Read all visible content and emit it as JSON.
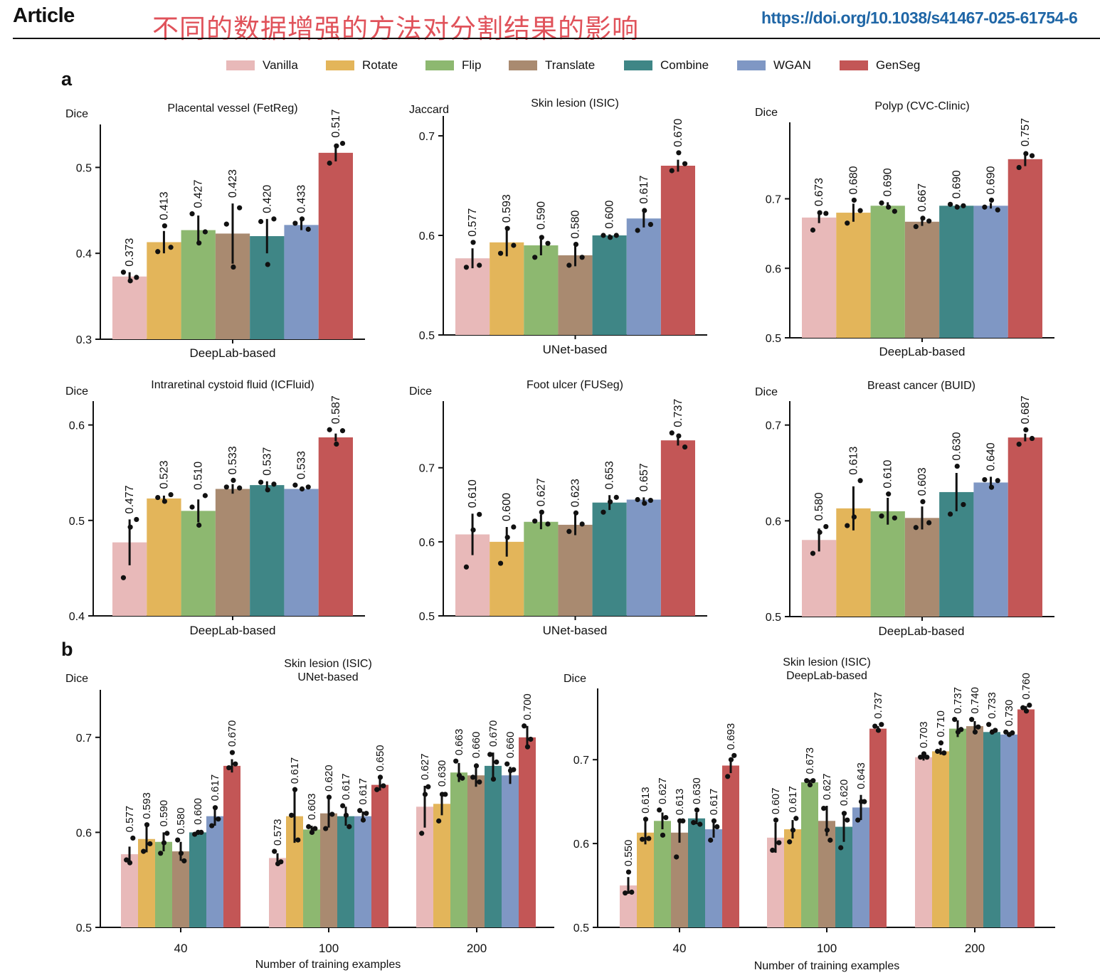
{
  "header": {
    "journal_label": "Article",
    "title_cn": "不同的数据增强的方法对分割结果的影响",
    "doi": "https://doi.org/10.1038/s41467-025-61754-6"
  },
  "legend": {
    "items": [
      {
        "label": "Vanilla",
        "color": "#e8b9b9"
      },
      {
        "label": "Rotate",
        "color": "#e3b55a"
      },
      {
        "label": "Flip",
        "color": "#8db870"
      },
      {
        "label": "Translate",
        "color": "#a98a70"
      },
      {
        "label": "Combine",
        "color": "#3f8686"
      },
      {
        "label": "WGAN",
        "color": "#7f97c4"
      },
      {
        "label": "GenSeg",
        "color": "#c35656"
      }
    ]
  },
  "panels": {
    "a": "a",
    "b": "b"
  },
  "chart_data": [
    {
      "type": "bar",
      "title": "Placental vessel (FetReg)",
      "ylabel": "Dice",
      "xlabel": "DeepLab-based",
      "ylim": [
        0.3,
        0.55
      ],
      "yticks": [
        0.3,
        0.4,
        0.5
      ],
      "tick_labels": [
        "0.3",
        "0.4",
        "0.5"
      ],
      "categories": [
        "Vanilla",
        "Rotate",
        "Flip",
        "Translate",
        "Combine",
        "WGAN",
        "GenSeg"
      ],
      "values": [
        0.373,
        0.413,
        0.427,
        0.423,
        0.42,
        0.433,
        0.517
      ],
      "value_labels": [
        "0.373",
        "0.413",
        "0.427",
        "0.423",
        "0.420",
        "0.433",
        "0.517"
      ],
      "err": [
        0.005,
        0.013,
        0.017,
        0.035,
        0.02,
        0.006,
        0.01
      ],
      "points": [
        [
          0.378,
          0.368,
          0.372
        ],
        [
          0.402,
          0.432,
          0.407
        ],
        [
          0.446,
          0.412,
          0.425
        ],
        [
          0.434,
          0.384,
          0.453
        ],
        [
          0.437,
          0.387,
          0.44
        ],
        [
          0.435,
          0.44,
          0.428
        ],
        [
          0.505,
          0.525,
          0.528
        ]
      ]
    },
    {
      "type": "bar",
      "title": "Skin lesion (ISIC)",
      "ylabel": "Jaccard",
      "xlabel": "UNet-based",
      "ylim": [
        0.5,
        0.72
      ],
      "yticks": [
        0.5,
        0.6,
        0.7
      ],
      "tick_labels": [
        "0.5",
        "0.6",
        "0.7"
      ],
      "categories": [
        "Vanilla",
        "Rotate",
        "Flip",
        "Translate",
        "Combine",
        "WGAN",
        "GenSeg"
      ],
      "values": [
        0.577,
        0.593,
        0.59,
        0.58,
        0.6,
        0.617,
        0.67
      ],
      "value_labels": [
        "0.577",
        "0.593",
        "0.590",
        "0.580",
        "0.600",
        "0.617",
        "0.670"
      ],
      "err": [
        0.01,
        0.014,
        0.01,
        0.011,
        0.001,
        0.009,
        0.006
      ],
      "points": [
        [
          0.568,
          0.593,
          0.57
        ],
        [
          0.582,
          0.607,
          0.59
        ],
        [
          0.578,
          0.598,
          0.592
        ],
        [
          0.57,
          0.591,
          0.578
        ],
        [
          0.6,
          0.598,
          0.6
        ],
        [
          0.605,
          0.625,
          0.611
        ],
        [
          0.665,
          0.683,
          0.672
        ]
      ]
    },
    {
      "type": "bar",
      "title": "Polyp (CVC-Clinic)",
      "ylabel": "Dice",
      "xlabel": "DeepLab-based",
      "ylim": [
        0.5,
        0.81
      ],
      "yticks": [
        0.5,
        0.6,
        0.7
      ],
      "tick_labels": [
        "0.5",
        "0.6",
        "0.7"
      ],
      "categories": [
        "Vanilla",
        "Rotate",
        "Flip",
        "Translate",
        "Combine",
        "WGAN",
        "GenSeg"
      ],
      "values": [
        0.673,
        0.68,
        0.69,
        0.667,
        0.69,
        0.69,
        0.757
      ],
      "value_labels": [
        "0.673",
        "0.680",
        "0.690",
        "0.667",
        "0.690",
        "0.690",
        "0.757"
      ],
      "err": [
        0.008,
        0.013,
        0.005,
        0.006,
        0.002,
        0.004,
        0.01
      ],
      "points": [
        [
          0.655,
          0.68,
          0.679
        ],
        [
          0.665,
          0.698,
          0.683
        ],
        [
          0.694,
          0.688,
          0.682
        ],
        [
          0.66,
          0.672,
          0.668
        ],
        [
          0.692,
          0.688,
          0.69
        ],
        [
          0.688,
          0.698,
          0.684
        ],
        [
          0.745,
          0.765,
          0.762
        ]
      ]
    },
    {
      "type": "bar",
      "title": "Intraretinal cystoid fluid (ICFluid)",
      "ylabel": "Dice",
      "xlabel": "DeepLab-based",
      "ylim": [
        0.4,
        0.625
      ],
      "yticks": [
        0.4,
        0.5,
        0.6
      ],
      "tick_labels": [
        "0.4",
        "0.5",
        "0.6"
      ],
      "categories": [
        "Vanilla",
        "Rotate",
        "Flip",
        "Translate",
        "Combine",
        "WGAN",
        "GenSeg"
      ],
      "values": [
        0.477,
        0.523,
        0.51,
        0.533,
        0.537,
        0.533,
        0.587
      ],
      "value_labels": [
        "0.477",
        "0.523",
        "0.510",
        "0.533",
        "0.537",
        "0.533",
        "0.587"
      ],
      "err": [
        0.024,
        0.003,
        0.012,
        0.005,
        0.004,
        0.002,
        0.004
      ],
      "points": [
        [
          0.44,
          0.493,
          0.501
        ],
        [
          0.524,
          0.52,
          0.527
        ],
        [
          0.514,
          0.495,
          0.526
        ],
        [
          0.535,
          0.542,
          0.534
        ],
        [
          0.54,
          0.532,
          0.538
        ],
        [
          0.537,
          0.533,
          0.535
        ],
        [
          0.595,
          0.58,
          0.594
        ]
      ]
    },
    {
      "type": "bar",
      "title": "Foot ulcer (FUSeg)",
      "ylabel": "Dice",
      "xlabel": "UNet-based",
      "ylim": [
        0.5,
        0.79
      ],
      "yticks": [
        0.5,
        0.6,
        0.7
      ],
      "tick_labels": [
        "0.5",
        "0.6",
        "0.7"
      ],
      "categories": [
        "Vanilla",
        "Rotate",
        "Flip",
        "Translate",
        "Combine",
        "WGAN",
        "GenSeg"
      ],
      "values": [
        0.61,
        0.6,
        0.627,
        0.623,
        0.653,
        0.657,
        0.737
      ],
      "value_labels": [
        "0.610",
        "0.600",
        "0.627",
        "0.623",
        "0.653",
        "0.657",
        "0.737"
      ],
      "err": [
        0.028,
        0.02,
        0.01,
        0.014,
        0.01,
        0.003,
        0.007
      ],
      "points": [
        [
          0.566,
          0.616,
          0.637
        ],
        [
          0.571,
          0.606,
          0.62
        ],
        [
          0.628,
          0.64,
          0.624
        ],
        [
          0.614,
          0.639,
          0.624
        ],
        [
          0.64,
          0.654,
          0.66
        ],
        [
          0.657,
          0.652,
          0.656
        ],
        [
          0.747,
          0.743,
          0.728
        ]
      ]
    },
    {
      "type": "bar",
      "title": "Breast cancer (BUID)",
      "ylabel": "Dice",
      "xlabel": "DeepLab-based",
      "ylim": [
        0.5,
        0.725
      ],
      "yticks": [
        0.5,
        0.6,
        0.7
      ],
      "tick_labels": [
        "0.5",
        "0.6",
        "0.7"
      ],
      "categories": [
        "Vanilla",
        "Rotate",
        "Flip",
        "Translate",
        "Combine",
        "WGAN",
        "GenSeg"
      ],
      "values": [
        0.58,
        0.613,
        0.61,
        0.603,
        0.63,
        0.64,
        0.687
      ],
      "value_labels": [
        "0.580",
        "0.613",
        "0.610",
        "0.603",
        "0.630",
        "0.640",
        "0.687"
      ],
      "err": [
        0.012,
        0.023,
        0.014,
        0.012,
        0.02,
        0.006,
        0.004
      ],
      "points": [
        [
          0.566,
          0.588,
          0.594
        ],
        [
          0.595,
          0.604,
          0.642
        ],
        [
          0.605,
          0.628,
          0.603
        ],
        [
          0.593,
          0.62,
          0.598
        ],
        [
          0.607,
          0.657,
          0.617
        ],
        [
          0.643,
          0.635,
          0.642
        ],
        [
          0.68,
          0.695,
          0.686
        ]
      ]
    },
    {
      "type": "bar",
      "title": "Skin lesion (ISIC)",
      "subtitle": "UNet-based",
      "ylabel": "Dice",
      "xlabel": "Number of training examples",
      "ylim": [
        0.5,
        0.75
      ],
      "yticks": [
        0.5,
        0.6,
        0.7
      ],
      "tick_labels": [
        "0.5",
        "0.6",
        "0.7"
      ],
      "categories": [
        "40",
        "100",
        "200"
      ],
      "series": [
        {
          "name": "Vanilla",
          "values": [
            0.577,
            0.573,
            0.627
          ],
          "value_labels": [
            "0.577",
            "0.573",
            "0.627"
          ],
          "err": [
            0.008,
            0.005,
            0.022
          ],
          "points": [
            [
              0.571,
              0.568,
              0.594
            ],
            [
              0.58,
              0.567,
              0.569
            ],
            [
              0.599,
              0.64,
              0.648
            ]
          ]
        },
        {
          "name": "Rotate",
          "values": [
            0.593,
            0.617,
            0.63
          ],
          "value_labels": [
            "0.593",
            "0.617",
            "0.630"
          ],
          "err": [
            0.014,
            0.028,
            0.012
          ],
          "points": [
            [
              0.58,
              0.608,
              0.588
            ],
            [
              0.618,
              0.645,
              0.592
            ],
            [
              0.612,
              0.64,
              0.64
            ]
          ]
        },
        {
          "name": "Flip",
          "values": [
            0.59,
            0.603,
            0.663
          ],
          "value_labels": [
            "0.590",
            "0.603",
            "0.663"
          ],
          "err": [
            0.01,
            0.004,
            0.01
          ],
          "points": [
            [
              0.578,
              0.589,
              0.599
            ],
            [
              0.606,
              0.6,
              0.604
            ],
            [
              0.675,
              0.66,
              0.657
            ]
          ]
        },
        {
          "name": "Translate",
          "values": [
            0.58,
            0.62,
            0.66
          ],
          "value_labels": [
            "0.580",
            "0.620",
            "0.660"
          ],
          "err": [
            0.01,
            0.015,
            0.012
          ],
          "points": [
            [
              0.592,
              0.578,
              0.57
            ],
            [
              0.604,
              0.637,
              0.619
            ],
            [
              0.658,
              0.67,
              0.653
            ]
          ]
        },
        {
          "name": "Combine",
          "values": [
            0.6,
            0.617,
            0.67
          ],
          "value_labels": [
            "0.600",
            "0.617",
            "0.670"
          ],
          "err": [
            0.002,
            0.01,
            0.014
          ],
          "points": [
            [
              0.598,
              0.6,
              0.6
            ],
            [
              0.628,
              0.618,
              0.606
            ],
            [
              0.682,
              0.656,
              0.674
            ]
          ]
        },
        {
          "name": "WGAN",
          "values": [
            0.617,
            0.617,
            0.66
          ],
          "value_labels": [
            "0.617",
            "0.617",
            "0.660"
          ],
          "err": [
            0.01,
            0.005,
            0.009
          ],
          "points": [
            [
              0.607,
              0.626,
              0.614
            ],
            [
              0.623,
              0.613,
              0.62
            ],
            [
              0.672,
              0.665,
              0.666
            ]
          ]
        },
        {
          "name": "GenSeg",
          "values": [
            0.67,
            0.65,
            0.7
          ],
          "value_labels": [
            "0.670",
            "0.650",
            "0.700"
          ],
          "err": [
            0.007,
            0.006,
            0.012
          ],
          "points": [
            [
              0.668,
              0.684,
              0.672
            ],
            [
              0.645,
              0.658,
              0.649
            ],
            [
              0.712,
              0.69,
              0.698
            ]
          ]
        }
      ]
    },
    {
      "type": "bar",
      "title": "Skin lesion (ISIC)",
      "subtitle": "DeepLab-based",
      "ylabel": "Dice",
      "xlabel": "Number of training examples",
      "ylim": [
        0.5,
        0.785
      ],
      "yticks": [
        0.5,
        0.6,
        0.7
      ],
      "tick_labels": [
        "0.5",
        "0.6",
        "0.7"
      ],
      "categories": [
        "40",
        "100",
        "200"
      ],
      "series": [
        {
          "name": "Vanilla",
          "values": [
            0.55,
            0.607,
            0.703
          ],
          "value_labels": [
            "0.550",
            "0.607",
            "0.703"
          ],
          "err": [
            0.01,
            0.018,
            0.004
          ],
          "points": [
            [
              0.541,
              0.566,
              0.542
            ],
            [
              0.592,
              0.628,
              0.601
            ],
            [
              0.703,
              0.707,
              0.703
            ]
          ]
        },
        {
          "name": "Rotate",
          "values": [
            0.613,
            0.617,
            0.71
          ],
          "value_labels": [
            "0.613",
            "0.617",
            "0.710"
          ],
          "err": [
            0.014,
            0.011,
            0.004
          ],
          "points": [
            [
              0.605,
              0.629,
              0.606
            ],
            [
              0.602,
              0.616,
              0.63
            ],
            [
              0.71,
              0.72,
              0.708
            ]
          ]
        },
        {
          "name": "Flip",
          "values": [
            0.627,
            0.673,
            0.737
          ],
          "value_labels": [
            "0.627",
            "0.673",
            "0.737"
          ],
          "err": [
            0.01,
            0.003,
            0.01
          ],
          "points": [
            [
              0.64,
              0.61,
              0.631
            ],
            [
              0.675,
              0.67,
              0.675
            ],
            [
              0.748,
              0.733,
              0.736
            ]
          ]
        },
        {
          "name": "Translate",
          "values": [
            0.613,
            0.627,
            0.74
          ],
          "value_labels": [
            "0.613",
            "0.627",
            "0.740"
          ],
          "err": [
            0.012,
            0.018,
            0.006
          ],
          "points": [
            [
              0.584,
              0.627,
              0.627
            ],
            [
              0.642,
              0.616,
              0.604
            ],
            [
              0.748,
              0.733,
              0.739
            ]
          ]
        },
        {
          "name": "Combine",
          "values": [
            0.63,
            0.62,
            0.733
          ],
          "value_labels": [
            "0.630",
            "0.620",
            "0.733"
          ],
          "err": [
            0.007,
            0.018,
            0.003
          ],
          "points": [
            [
              0.625,
              0.64,
              0.623
            ],
            [
              0.595,
              0.636,
              0.628
            ],
            [
              0.742,
              0.733,
              0.735
            ]
          ]
        },
        {
          "name": "WGAN",
          "values": [
            0.617,
            0.643,
            0.73
          ],
          "value_labels": [
            "0.617",
            "0.643",
            "0.730"
          ],
          "err": [
            0.01,
            0.015,
            0.002
          ],
          "points": [
            [
              0.604,
              0.627,
              0.62
            ],
            [
              0.628,
              0.65,
              0.65
            ],
            [
              0.733,
              0.73,
              0.732
            ]
          ]
        },
        {
          "name": "GenSeg",
          "values": [
            0.693,
            0.737,
            0.76
          ],
          "value_labels": [
            "0.693",
            "0.737",
            "0.760"
          ],
          "err": [
            0.009,
            0.003,
            0.004
          ],
          "points": [
            [
              0.68,
              0.7,
              0.705
            ],
            [
              0.74,
              0.735,
              0.742
            ],
            [
              0.762,
              0.758,
              0.765
            ]
          ]
        }
      ]
    }
  ]
}
